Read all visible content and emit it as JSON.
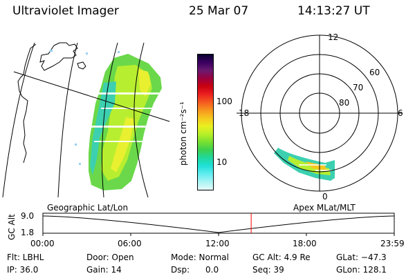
{
  "header": {
    "instrument": "Ultraviolet Imager",
    "date": "25 Mar 07",
    "time": "14:13:27 UT"
  },
  "colorbar": {
    "unit_label": "photon cm⁻²s⁻¹",
    "ticks": [
      "100",
      "10"
    ],
    "colors": [
      "#0a0030",
      "#3a0060",
      "#6a1a70",
      "#9a0040",
      "#c80010",
      "#ec2020",
      "#f55a20",
      "#f7951e",
      "#f5c820",
      "#eaf020",
      "#b8f028",
      "#78e030",
      "#3cd050",
      "#20d8a0",
      "#20e0d8",
      "#60ecf0",
      "#a8f4f4",
      "#e6fafa"
    ]
  },
  "polar": {
    "mlt_labels": [
      "12",
      "18",
      "6",
      "0"
    ],
    "mlat_labels": [
      "60",
      "70",
      "80"
    ]
  },
  "timeline": {
    "left_label": "Geographic Lat/Lon",
    "right_label": "Apex MLat/MLT",
    "y_axis_label": "GC Alt",
    "y_ticks": [
      "9.0",
      "1.8"
    ],
    "x_ticks": [
      "00:00",
      "06:00",
      "12:00",
      "18:00",
      "23:59"
    ],
    "marker_time": "14:13",
    "marker_color": "#ff0000"
  },
  "status": {
    "flt": "Flt: LBHL",
    "ip": "IP: 36.0",
    "door": "Door: Open",
    "gain": "Gain: 14",
    "mode": "Mode: Normal",
    "dsp": "Dsp:      0.0",
    "gc_alt": "GC Alt: 4.9 Re",
    "seq": "Seq: 39",
    "glat": "GLat: −47.3",
    "glon": "GLon: 128.1"
  }
}
